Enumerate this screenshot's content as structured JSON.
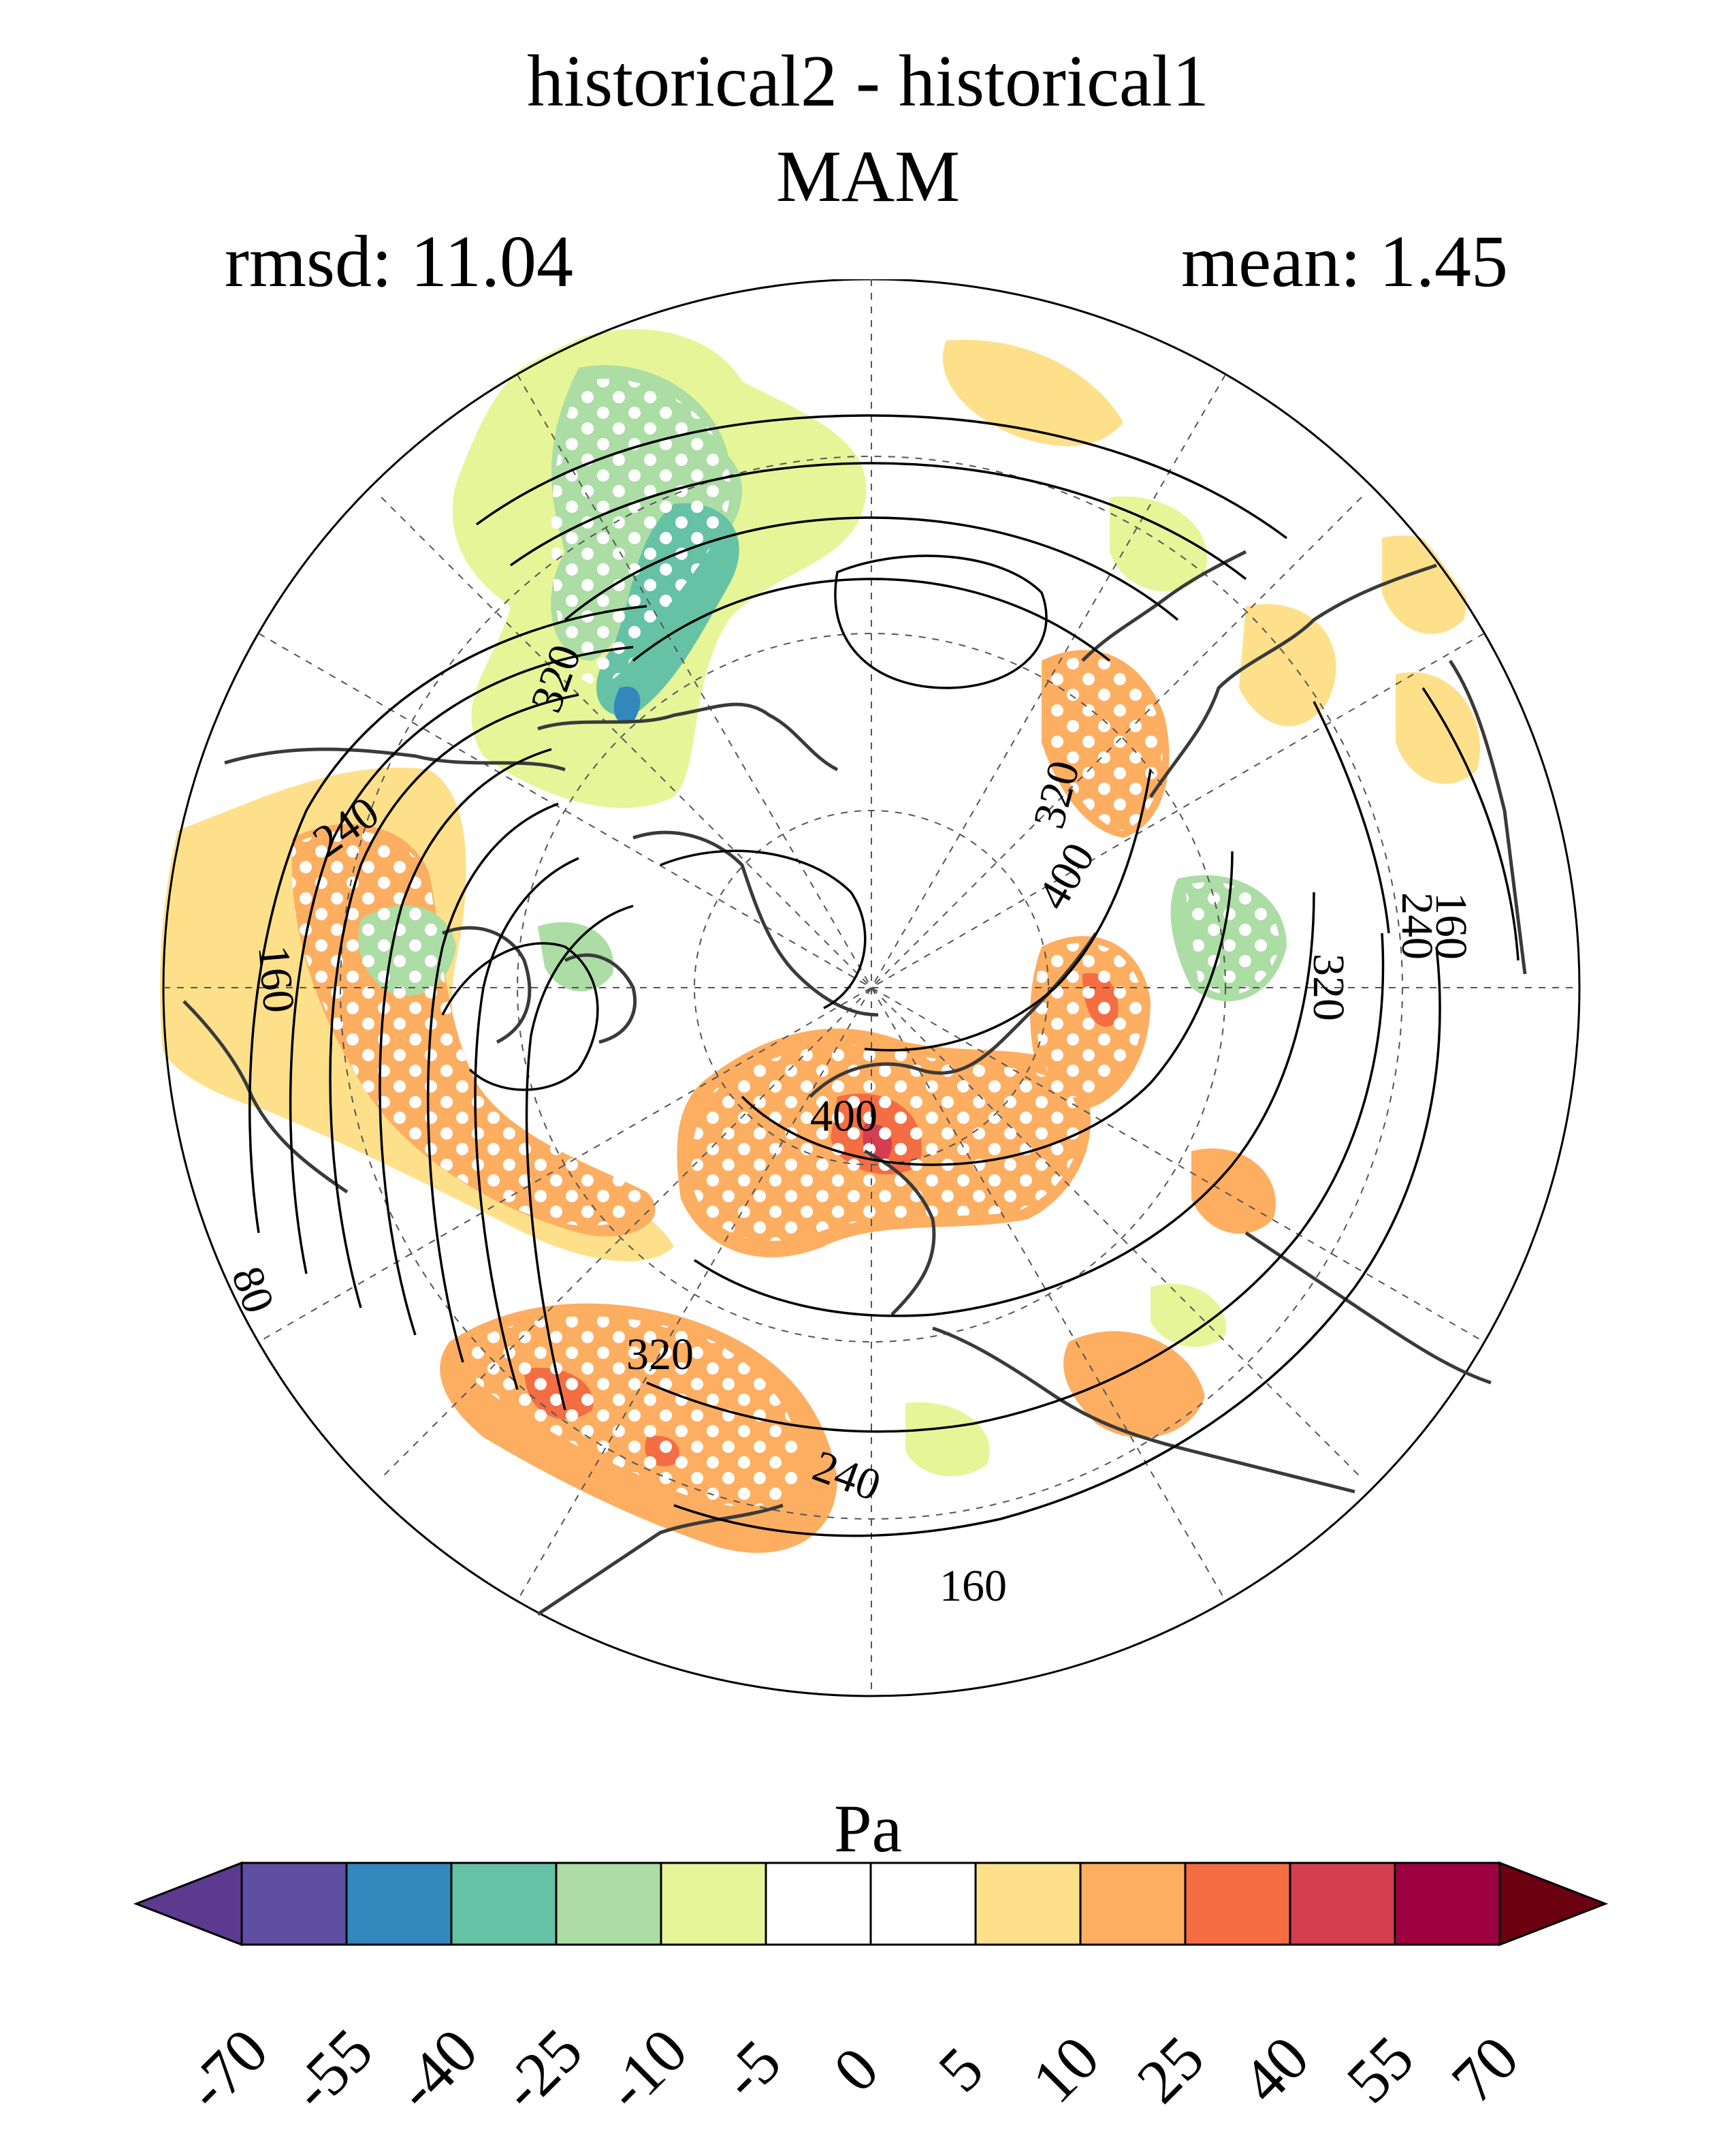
{
  "title": {
    "line1": "historical2 - historical1",
    "line2": "MAM"
  },
  "stats": {
    "rmsd": "rmsd: 11.04",
    "mean": "mean: 1.45"
  },
  "map": {
    "projection": "north-polar-stereographic",
    "contour_labels": [
      "320",
      "240",
      "160",
      "80",
      "320",
      "400",
      "400",
      "320",
      "240",
      "160",
      "320",
      "240",
      "160"
    ],
    "stippling": true,
    "colors": {
      "coastline": "#3a3a3a",
      "contour": "#000000",
      "grid": "#555555"
    }
  },
  "colorbar": {
    "units": "Pa",
    "tick_labels": [
      "-70",
      "-55",
      "-40",
      "-25",
      "-10",
      "-5",
      "0",
      "5",
      "10",
      "25",
      "40",
      "55",
      "70"
    ],
    "colors": [
      "#5b3a8f",
      "#5e4fa2",
      "#3288bd",
      "#66c2a5",
      "#abdda4",
      "#e6f598",
      "#ffffff",
      "#ffffff",
      "#fee08b",
      "#fdae61",
      "#f46d43",
      "#d53e4f",
      "#9e0142",
      "#6b0010"
    ]
  }
}
